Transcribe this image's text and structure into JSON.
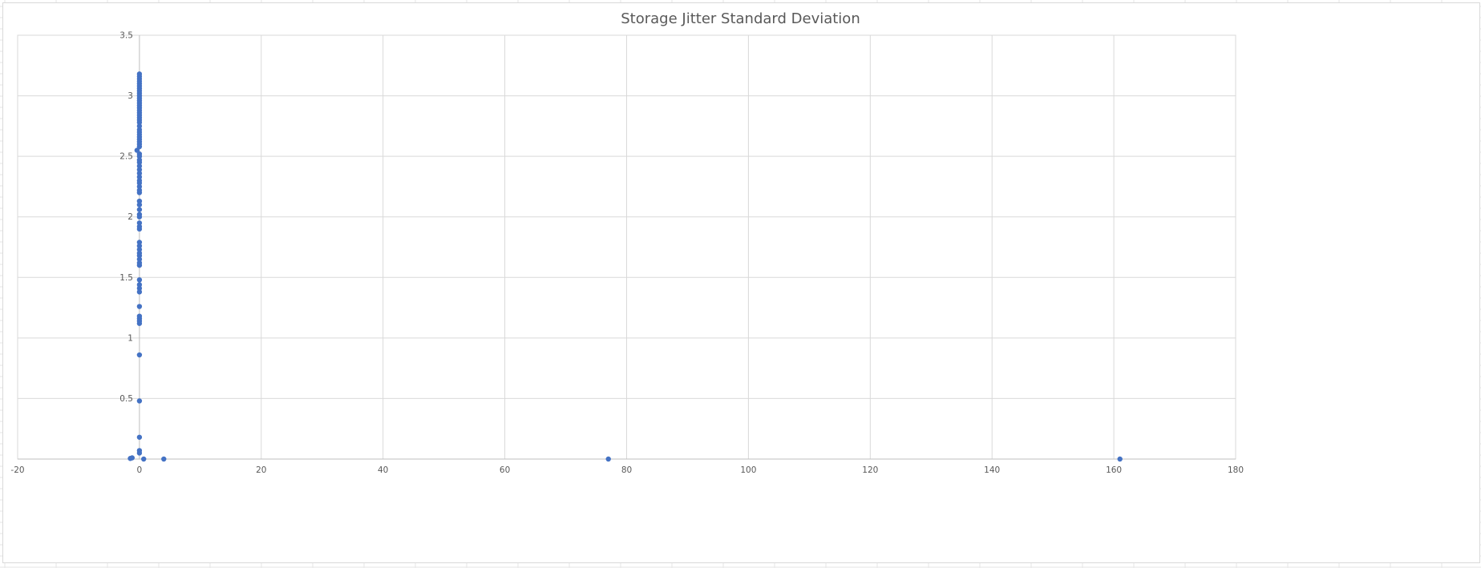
{
  "chart_data": {
    "type": "scatter",
    "title": "Storage Jitter Standard Deviation",
    "xlabel": "",
    "ylabel": "",
    "xlim": [
      -20,
      180
    ],
    "ylim": [
      0,
      3.5
    ],
    "x_ticks": [
      -20,
      0,
      20,
      40,
      60,
      80,
      100,
      120,
      140,
      160,
      180
    ],
    "y_ticks": [
      0.5,
      1,
      1.5,
      2,
      2.5,
      3,
      3.5
    ],
    "grid": true,
    "legend": "none",
    "marker_color": "#4472C4",
    "series": [
      {
        "points": [
          [
            -1.5,
            0.005
          ],
          [
            -1.2,
            0.01
          ],
          [
            0.7,
            0.0
          ],
          [
            4,
            0.0
          ],
          [
            77,
            0.0
          ],
          [
            161,
            0.0
          ],
          [
            0,
            0.05
          ],
          [
            0,
            0.07
          ],
          [
            0,
            0.18
          ],
          [
            0,
            0.48
          ],
          [
            0,
            0.86
          ],
          [
            0,
            1.12
          ],
          [
            0,
            1.14
          ],
          [
            0,
            1.16
          ],
          [
            0,
            1.18
          ],
          [
            0,
            1.26
          ],
          [
            0,
            1.38
          ],
          [
            0,
            1.41
          ],
          [
            0,
            1.44
          ],
          [
            0,
            1.48
          ],
          [
            0,
            1.6
          ],
          [
            0,
            1.62
          ],
          [
            0,
            1.65
          ],
          [
            0,
            1.68
          ],
          [
            0,
            1.7
          ],
          [
            0,
            1.73
          ],
          [
            0,
            1.76
          ],
          [
            0,
            1.79
          ],
          [
            0,
            1.9
          ],
          [
            0,
            1.92
          ],
          [
            0,
            1.95
          ],
          [
            0,
            2.0
          ],
          [
            0,
            2.02
          ],
          [
            0,
            2.06
          ],
          [
            0,
            2.1
          ],
          [
            0,
            2.13
          ],
          [
            0,
            2.2
          ],
          [
            0,
            2.22
          ],
          [
            0,
            2.25
          ],
          [
            0,
            2.28
          ],
          [
            0,
            2.3
          ],
          [
            0,
            2.33
          ],
          [
            0,
            2.36
          ],
          [
            0,
            2.39
          ],
          [
            0,
            2.42
          ],
          [
            0,
            2.45
          ],
          [
            0,
            2.47
          ],
          [
            0,
            2.5
          ],
          [
            0,
            2.52
          ],
          [
            -0.4,
            2.55
          ],
          [
            0,
            2.58
          ],
          [
            0,
            2.6
          ],
          [
            0,
            2.62
          ],
          [
            0,
            2.64
          ],
          [
            0,
            2.66
          ],
          [
            0,
            2.68
          ],
          [
            0,
            2.7
          ],
          [
            0,
            2.72
          ],
          [
            0,
            2.75
          ],
          [
            0,
            2.78
          ],
          [
            0,
            2.8
          ],
          [
            0,
            2.82
          ],
          [
            0,
            2.84
          ],
          [
            0,
            2.86
          ],
          [
            0,
            2.88
          ],
          [
            0,
            2.9
          ],
          [
            0,
            2.92
          ],
          [
            0,
            2.94
          ],
          [
            0,
            2.96
          ],
          [
            0,
            2.98
          ],
          [
            0,
            3.0
          ],
          [
            0,
            3.02
          ],
          [
            0,
            3.04
          ],
          [
            0,
            3.06
          ],
          [
            0,
            3.08
          ],
          [
            0,
            3.1
          ],
          [
            0,
            3.12
          ],
          [
            0,
            3.14
          ],
          [
            0,
            3.16
          ],
          [
            0,
            3.18
          ]
        ]
      }
    ]
  }
}
